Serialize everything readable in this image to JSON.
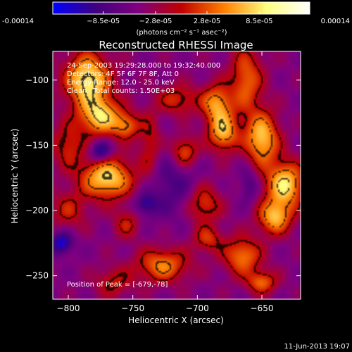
{
  "chart_data": {
    "type": "heatmap",
    "title": "Reconstructed RHESSI Image",
    "xlabel": "Heliocentric X (arcsec)",
    "ylabel": "Heliocentric Y (arcsec)",
    "xlim": [
      -812,
      -620
    ],
    "ylim": [
      -268,
      -78
    ],
    "x_ticks": [
      -800,
      -750,
      -700,
      -650
    ],
    "y_ticks": [
      -100,
      -150,
      -200,
      -250
    ],
    "colorbar": {
      "min": -0.00014,
      "max": 0.00014,
      "tick_values": [
        -0.00014,
        -8.5e-05,
        -2.8e-05,
        2.8e-05,
        8.5e-05,
        0.00014
      ],
      "tick_labels": [
        "-0.00014",
        "−8.5e-05",
        "−2.8e-05",
        "2.8e-05",
        "8.5e-05",
        "0.00014"
      ],
      "unit_label": "(photons cm⁻² s⁻¹ asec⁻²)",
      "stops": [
        "#0000ff",
        "#400080",
        "#800080",
        "#c00000",
        "#ff8000",
        "#ffff80",
        "#ffffff"
      ]
    },
    "annotations": {
      "time": "24-Sep-2003 19:29:28.000 to 19:32:40.000",
      "detectors": "Detectors: 4F 5F 6F 7F 8F, Att 0",
      "energy": "Energy Range: 12.0 - 25.0 keV",
      "method": "Clean",
      "counts": "Total counts: 1.50E+03",
      "peak": "Position of Peak = [-679,-78]"
    },
    "plot_date": "11-Jun-2013 19:07",
    "blobs": [
      {
        "x": -785,
        "y": -100,
        "sx": 12,
        "sy": 14,
        "v": 0.00014
      },
      {
        "x": -775,
        "y": -128,
        "sx": 11,
        "sy": 10,
        "v": 0.00012
      },
      {
        "x": -770,
        "y": -175,
        "sx": 14,
        "sy": 11,
        "v": 0.00013
      },
      {
        "x": -775,
        "y": -155,
        "sx": 6,
        "sy": 6,
        "v": -8e-05
      },
      {
        "x": -800,
        "y": -150,
        "sx": 9,
        "sy": 12,
        "v": 6e-05
      },
      {
        "x": -755,
        "y": -135,
        "sx": 7,
        "sy": 7,
        "v": 8e-05
      },
      {
        "x": -737,
        "y": -150,
        "sx": 6,
        "sy": 18,
        "v": 5e-05
      },
      {
        "x": -715,
        "y": -115,
        "sx": 11,
        "sy": 8,
        "v": 6e-05
      },
      {
        "x": -710,
        "y": -155,
        "sx": 7,
        "sy": 8,
        "v": 8e-05
      },
      {
        "x": -685,
        "y": -118,
        "sx": 8,
        "sy": 10,
        "v": 0.0001
      },
      {
        "x": -680,
        "y": -140,
        "sx": 8,
        "sy": 10,
        "v": 0.00011
      },
      {
        "x": -662,
        "y": -100,
        "sx": 9,
        "sy": 18,
        "v": 8e-05
      },
      {
        "x": -650,
        "y": -145,
        "sx": 9,
        "sy": 14,
        "v": 0.00012
      },
      {
        "x": -632,
        "y": -180,
        "sx": 10,
        "sy": 12,
        "v": 0.00013
      },
      {
        "x": -640,
        "y": -205,
        "sx": 9,
        "sy": 9,
        "v": 0.00011
      },
      {
        "x": -660,
        "y": -180,
        "sx": 5,
        "sy": 10,
        "v": -4e-05
      },
      {
        "x": -727,
        "y": -242,
        "sx": 14,
        "sy": 9,
        "v": 9e-05
      },
      {
        "x": -695,
        "y": -195,
        "sx": 9,
        "sy": 10,
        "v": 7e-05
      },
      {
        "x": -692,
        "y": -222,
        "sx": 8,
        "sy": 7,
        "v": 6e-05
      },
      {
        "x": -665,
        "y": -235,
        "sx": 10,
        "sy": 10,
        "v": 9e-05
      },
      {
        "x": -650,
        "y": -255,
        "sx": 8,
        "sy": 6,
        "v": 8e-05
      },
      {
        "x": -755,
        "y": -210,
        "sx": 7,
        "sy": 8,
        "v": 5e-05
      },
      {
        "x": -800,
        "y": -200,
        "sx": 10,
        "sy": 10,
        "v": 5e-05
      },
      {
        "x": -805,
        "y": -225,
        "sx": 6,
        "sy": 6,
        "v": -8e-05
      },
      {
        "x": -765,
        "y": -255,
        "sx": 10,
        "sy": 8,
        "v": 5e-05
      },
      {
        "x": -720,
        "y": -180,
        "sx": 14,
        "sy": 18,
        "v": -4e-05
      },
      {
        "x": -740,
        "y": -195,
        "sx": 6,
        "sy": 6,
        "v": -6e-05
      }
    ]
  }
}
